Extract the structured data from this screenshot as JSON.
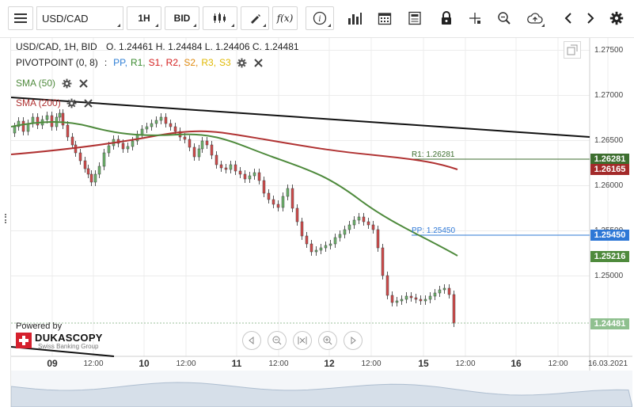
{
  "toolbar": {
    "menu_icon": "hamburger-menu-icon",
    "instrument": "USD/CAD",
    "timeframe": "1H",
    "side": "BID",
    "icons": [
      "candle-type-icon",
      "draw-line-icon",
      "formula-icon",
      "info-icon",
      "volume-bars-icon",
      "calendar-icon",
      "news-icon",
      "lock-icon",
      "crosshair-icon",
      "zoom-icon",
      "cloud-upload-icon",
      "chevron-left-icon",
      "chevron-right-icon",
      "gear-icon"
    ],
    "formula_label": "f(x)"
  },
  "legend": {
    "instrument_line": "USD/CAD, 1H, BID",
    "ohlc": "O. 1.24461 H. 1.24484 L. 1.24406 C. 1.24481",
    "pivot_label": "PIVOTPOINT (0, 8)",
    "pivot_separator": ":",
    "pivot_items": [
      {
        "label": "PP,",
        "color": "#2f7fd6"
      },
      {
        "label": "R1,",
        "color": "#3a8a2e"
      },
      {
        "label": "S1,",
        "color": "#d42020"
      },
      {
        "label": "R2,",
        "color": "#d42020"
      },
      {
        "label": "S2,",
        "color": "#e08a10"
      },
      {
        "label": "R3,",
        "color": "#e0b800"
      },
      {
        "label": "S3",
        "color": "#e0b800"
      }
    ],
    "sma50_label": "SMA (50)",
    "sma50_color": "#4e8a3c",
    "sma200_label": "SMA (200)",
    "sma200_color": "#b03232"
  },
  "price_axis": {
    "ticks": [
      "1.27500",
      "1.27000",
      "1.26500",
      "1.26000",
      "1.25500",
      "1.25000"
    ],
    "tags": [
      {
        "value": "1.26281",
        "color": "#3d6e2f"
      },
      {
        "value": "1.26165",
        "color": "#a32a2a"
      },
      {
        "value": "1.25450",
        "color": "#2e78d6"
      },
      {
        "value": "1.25216",
        "color": "#4e8a3c"
      },
      {
        "value": "1.24481",
        "color": "#8fc08f"
      }
    ]
  },
  "pivot_lines": {
    "r1_label": "R1: 1.26281",
    "r1_color": "#3d6e2f",
    "pp_label": "PP: 1.25450",
    "pp_color": "#2e78d6"
  },
  "time_axis": {
    "labels": [
      "09",
      "12:00",
      "10",
      "12:00",
      "11",
      "12:00",
      "12",
      "12:00",
      "15",
      "12:00",
      "16",
      "12:00",
      "16.03.2021"
    ],
    "day_labels": [
      "09",
      "10",
      "11",
      "12",
      "15",
      "16"
    ]
  },
  "branding": {
    "powered_by": "Powered by",
    "name": "DUKASCOPY",
    "tagline": "Swiss Banking Group"
  },
  "navigator": {
    "icons": [
      "scroll-left-icon",
      "zoom-out-icon",
      "fit-icon",
      "zoom-in-icon",
      "scroll-right-icon"
    ]
  },
  "colors": {
    "bull_candle": "#6db36b",
    "bear_candle": "#d24a4a",
    "trendline": "#111111"
  }
}
